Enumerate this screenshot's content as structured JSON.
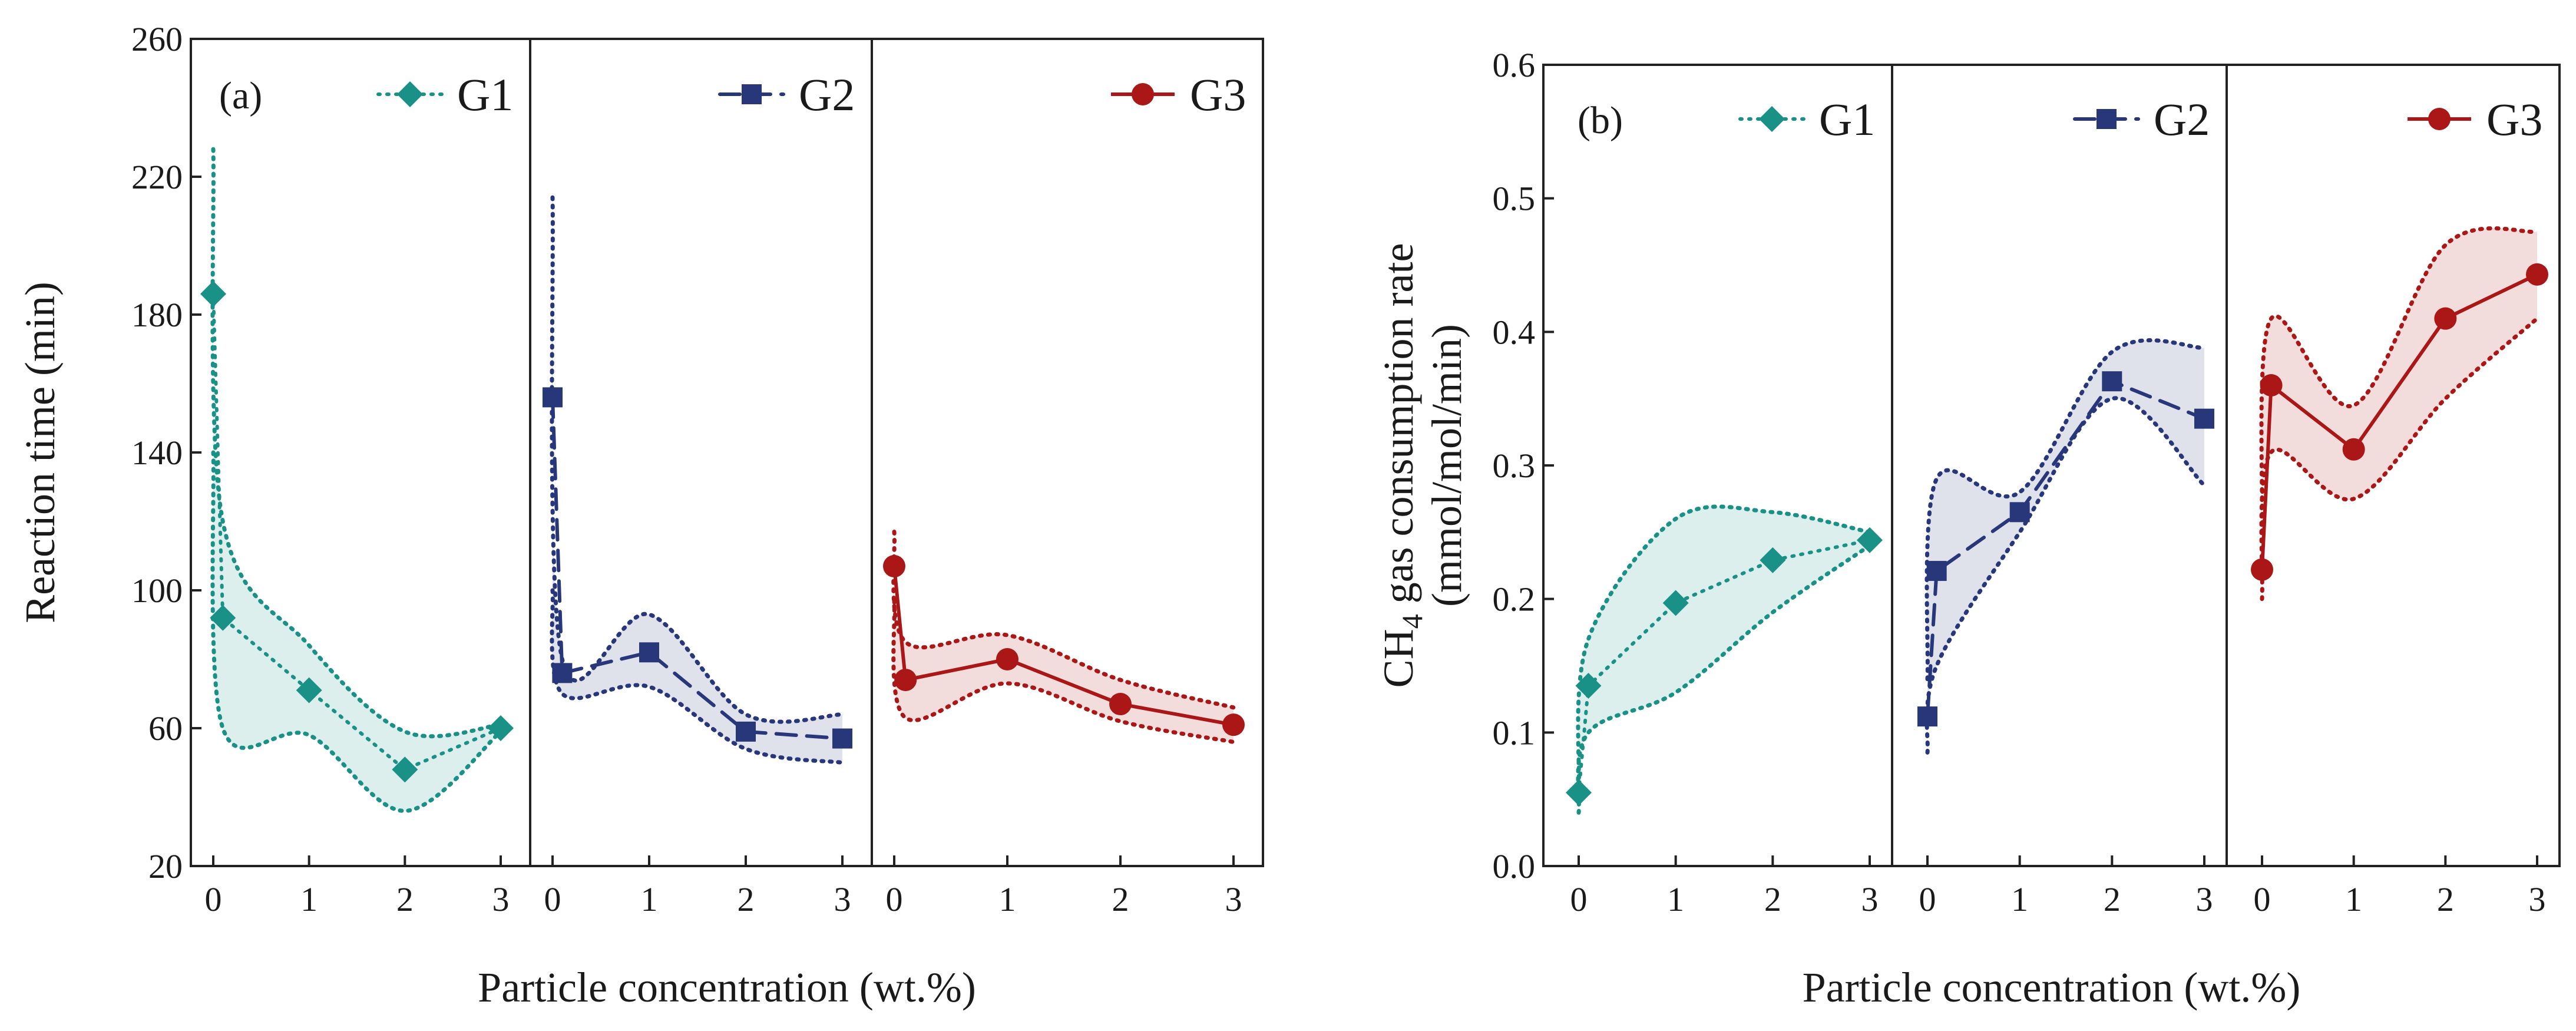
{
  "colors": {
    "G1": "#1a9187",
    "G2": "#27377a",
    "G3": "#ab1717"
  },
  "chart_data": [
    {
      "type": "line",
      "panel_label": "(a)",
      "xlabel": "Particle concentration (wt.%)",
      "ylabel": "Reaction time (min)",
      "ylim": [
        20,
        260
      ],
      "yticks": [
        "20",
        "60",
        "100",
        "140",
        "180",
        "220",
        "260"
      ],
      "xticks": [
        "0",
        "1",
        "2",
        "3"
      ],
      "series": [
        {
          "name": "G1",
          "marker": "diamond",
          "line_style": "dotted",
          "points": [
            [
              0,
              186
            ],
            [
              0.1,
              92
            ],
            [
              1,
              71
            ],
            [
              2,
              48
            ],
            [
              3,
              60
            ]
          ],
          "band_upper": [
            [
              0,
              228
            ],
            [
              0.1,
              120
            ],
            [
              1,
              84
            ],
            [
              2,
              59
            ],
            [
              3,
              61
            ]
          ],
          "band_lower": [
            [
              0,
              140
            ],
            [
              0.1,
              60
            ],
            [
              1,
              58
            ],
            [
              2,
              36
            ],
            [
              3,
              59
            ]
          ]
        },
        {
          "name": "G2",
          "marker": "square",
          "line_style": "dashed",
          "points": [
            [
              0,
              156
            ],
            [
              0.1,
              76
            ],
            [
              1,
              82
            ],
            [
              2,
              59
            ],
            [
              3,
              57
            ]
          ],
          "band_upper": [
            [
              0,
              214
            ],
            [
              0.1,
              80
            ],
            [
              1,
              93
            ],
            [
              2,
              64
            ],
            [
              3,
              64
            ]
          ],
          "band_lower": [
            [
              0,
              100
            ],
            [
              0.1,
              70
            ],
            [
              1,
              72
            ],
            [
              2,
              54
            ],
            [
              3,
              50
            ]
          ]
        },
        {
          "name": "G3",
          "marker": "circle",
          "line_style": "solid",
          "points": [
            [
              0,
              107
            ],
            [
              0.1,
              74
            ],
            [
              1,
              80
            ],
            [
              2,
              67
            ],
            [
              3,
              61
            ]
          ],
          "band_upper": [
            [
              0,
              117
            ],
            [
              0.1,
              85
            ],
            [
              1,
              87
            ],
            [
              2,
              74
            ],
            [
              3,
              66
            ]
          ],
          "band_lower": [
            [
              0,
              97
            ],
            [
              0.1,
              63
            ],
            [
              1,
              73
            ],
            [
              2,
              62
            ],
            [
              3,
              56
            ]
          ]
        }
      ]
    },
    {
      "type": "line",
      "panel_label": "(b)",
      "xlabel": "Particle concentration (wt.%)",
      "ylabel_line1": "CH",
      "ylabel_sub": "4",
      "ylabel_rest": " gas consumption rate",
      "ylabel_line2": "(mmol/mol/min)",
      "ylim": [
        0.0,
        0.6
      ],
      "yticks": [
        "0.0",
        "0.1",
        "0.2",
        "0.3",
        "0.4",
        "0.5",
        "0.6"
      ],
      "xticks": [
        "0",
        "1",
        "2",
        "3"
      ],
      "series": [
        {
          "name": "G1",
          "marker": "diamond",
          "line_style": "dotted",
          "points": [
            [
              0,
              0.055
            ],
            [
              0.1,
              0.135
            ],
            [
              1,
              0.197
            ],
            [
              2,
              0.229
            ],
            [
              3,
              0.244
            ]
          ],
          "band_upper": [
            [
              0,
              0.06
            ],
            [
              0.1,
              0.17
            ],
            [
              1,
              0.26
            ],
            [
              2,
              0.265
            ],
            [
              3,
              0.25
            ]
          ],
          "band_lower": [
            [
              0,
              0.04
            ],
            [
              0.1,
              0.1
            ],
            [
              1,
              0.13
            ],
            [
              2,
              0.19
            ],
            [
              3,
              0.24
            ]
          ]
        },
        {
          "name": "G2",
          "marker": "square",
          "line_style": "dashed",
          "points": [
            [
              0,
              0.112
            ],
            [
              0.1,
              0.221
            ],
            [
              1,
              0.265
            ],
            [
              2,
              0.363
            ],
            [
              3,
              0.335
            ]
          ],
          "band_upper": [
            [
              0,
              0.14
            ],
            [
              0.1,
              0.29
            ],
            [
              1,
              0.28
            ],
            [
              2,
              0.385
            ],
            [
              3,
              0.388
            ]
          ],
          "band_lower": [
            [
              0,
              0.085
            ],
            [
              0.1,
              0.15
            ],
            [
              1,
              0.25
            ],
            [
              2,
              0.35
            ],
            [
              3,
              0.285
            ]
          ]
        },
        {
          "name": "G3",
          "marker": "circle",
          "line_style": "solid",
          "points": [
            [
              0,
              0.222
            ],
            [
              0.1,
              0.36
            ],
            [
              1,
              0.312
            ],
            [
              2,
              0.41
            ],
            [
              3,
              0.443
            ]
          ],
          "band_upper": [
            [
              0,
              0.25
            ],
            [
              0.1,
              0.41
            ],
            [
              1,
              0.345
            ],
            [
              2,
              0.465
            ],
            [
              3,
              0.475
            ]
          ],
          "band_lower": [
            [
              0,
              0.2
            ],
            [
              0.1,
              0.31
            ],
            [
              1,
              0.275
            ],
            [
              2,
              0.35
            ],
            [
              3,
              0.41
            ]
          ]
        }
      ]
    }
  ]
}
